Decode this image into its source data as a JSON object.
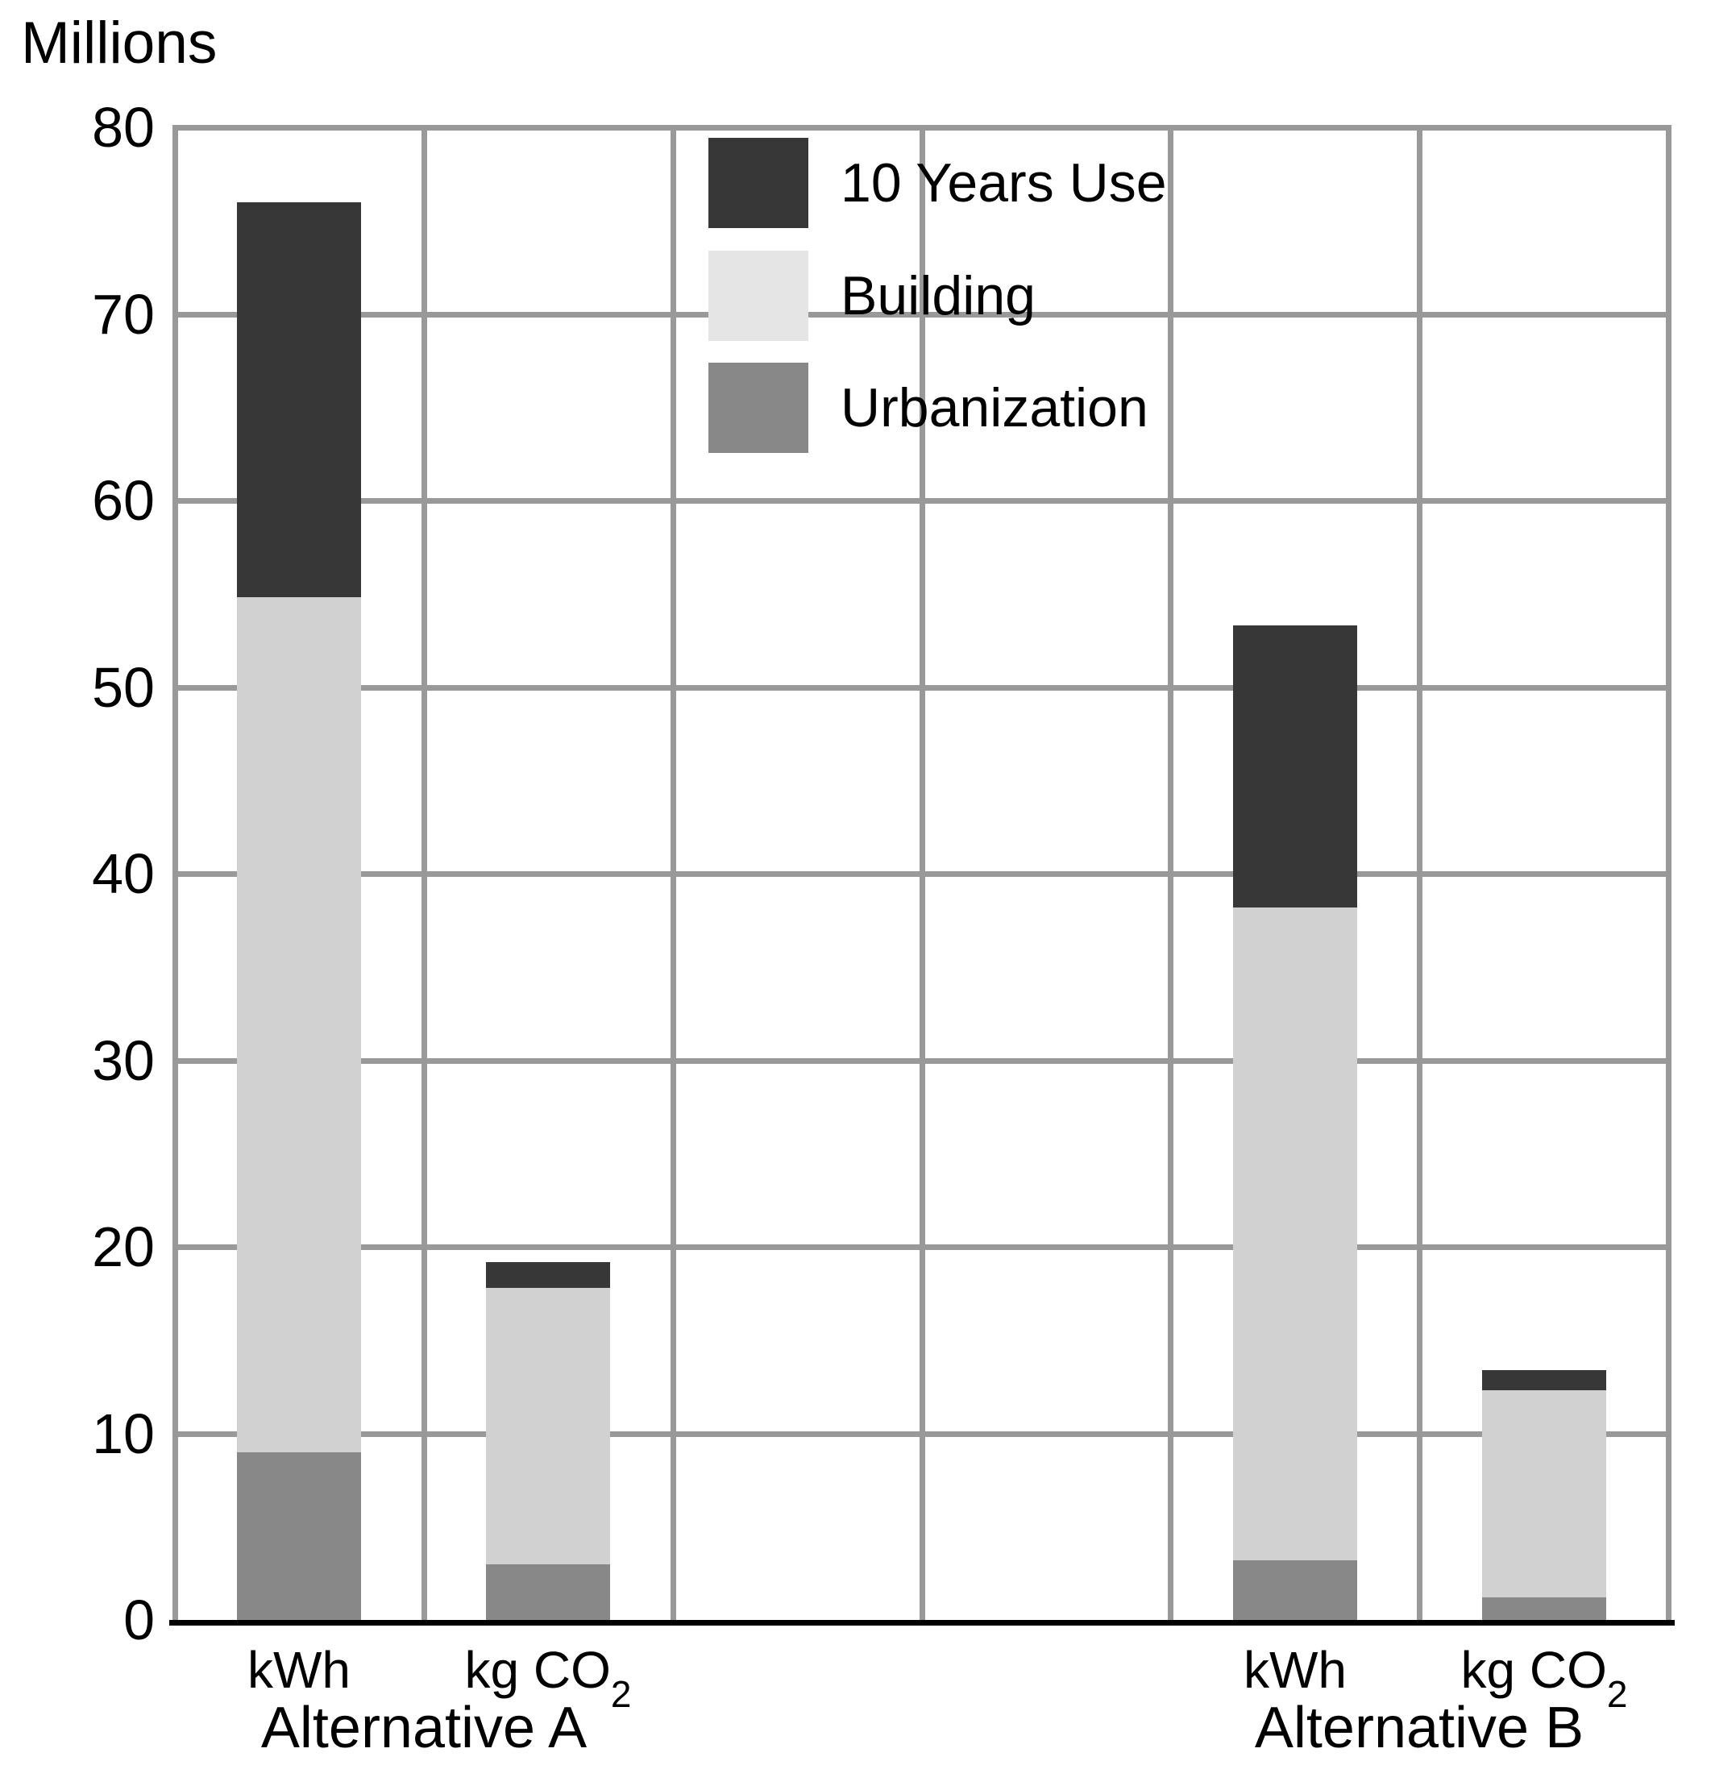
{
  "chart_data": {
    "type": "bar",
    "stacked": true,
    "title": "Millions",
    "xlabel": "",
    "ylabel": "Millions",
    "ylim": [
      0,
      80
    ],
    "ytick_step": 10,
    "ytick_labels": [
      "0",
      "10",
      "20",
      "30",
      "40",
      "50",
      "60",
      "70",
      "80"
    ],
    "grid": true,
    "grid_columns": 6,
    "legend_position": "top-center-inside",
    "legend": [
      {
        "label": "10 Years Use",
        "color": "#373737"
      },
      {
        "label": "Building",
        "color": "#e5e5e5"
      },
      {
        "label": "Urbanization",
        "color": "#888888"
      }
    ],
    "categories": [
      {
        "label": "kWh",
        "label_sub": "",
        "group": "Alternative A",
        "column": 0
      },
      {
        "label": "kg CO",
        "label_sub": "2",
        "group": "Alternative A",
        "column": 1
      },
      {
        "label": "kWh",
        "label_sub": "",
        "group": "Alternative B",
        "column": 4
      },
      {
        "label": "kg CO",
        "label_sub": "2",
        "group": "Alternative B",
        "column": 5
      }
    ],
    "groups": [
      {
        "label": "Alternative A",
        "center_column": 1
      },
      {
        "label": "Alternative B",
        "center_column": 5
      }
    ],
    "series": [
      {
        "name": "Urbanization",
        "color": "#888888",
        "values": [
          9.0,
          3.0,
          3.2,
          1.2
        ]
      },
      {
        "name": "Building",
        "color": "#d1d1d1",
        "legend_color": "#e5e5e5",
        "values": [
          45.8,
          14.8,
          35.0,
          11.1
        ]
      },
      {
        "name": "10 Years Use",
        "color": "#373737",
        "values": [
          21.2,
          1.4,
          15.1,
          1.1
        ]
      }
    ],
    "bar_totals": [
      76.0,
      19.2,
      53.3,
      13.4
    ]
  },
  "colors": {
    "background": "#ffffff",
    "gridline": "#999999",
    "axis_line": "#000000",
    "text": "#000000"
  }
}
